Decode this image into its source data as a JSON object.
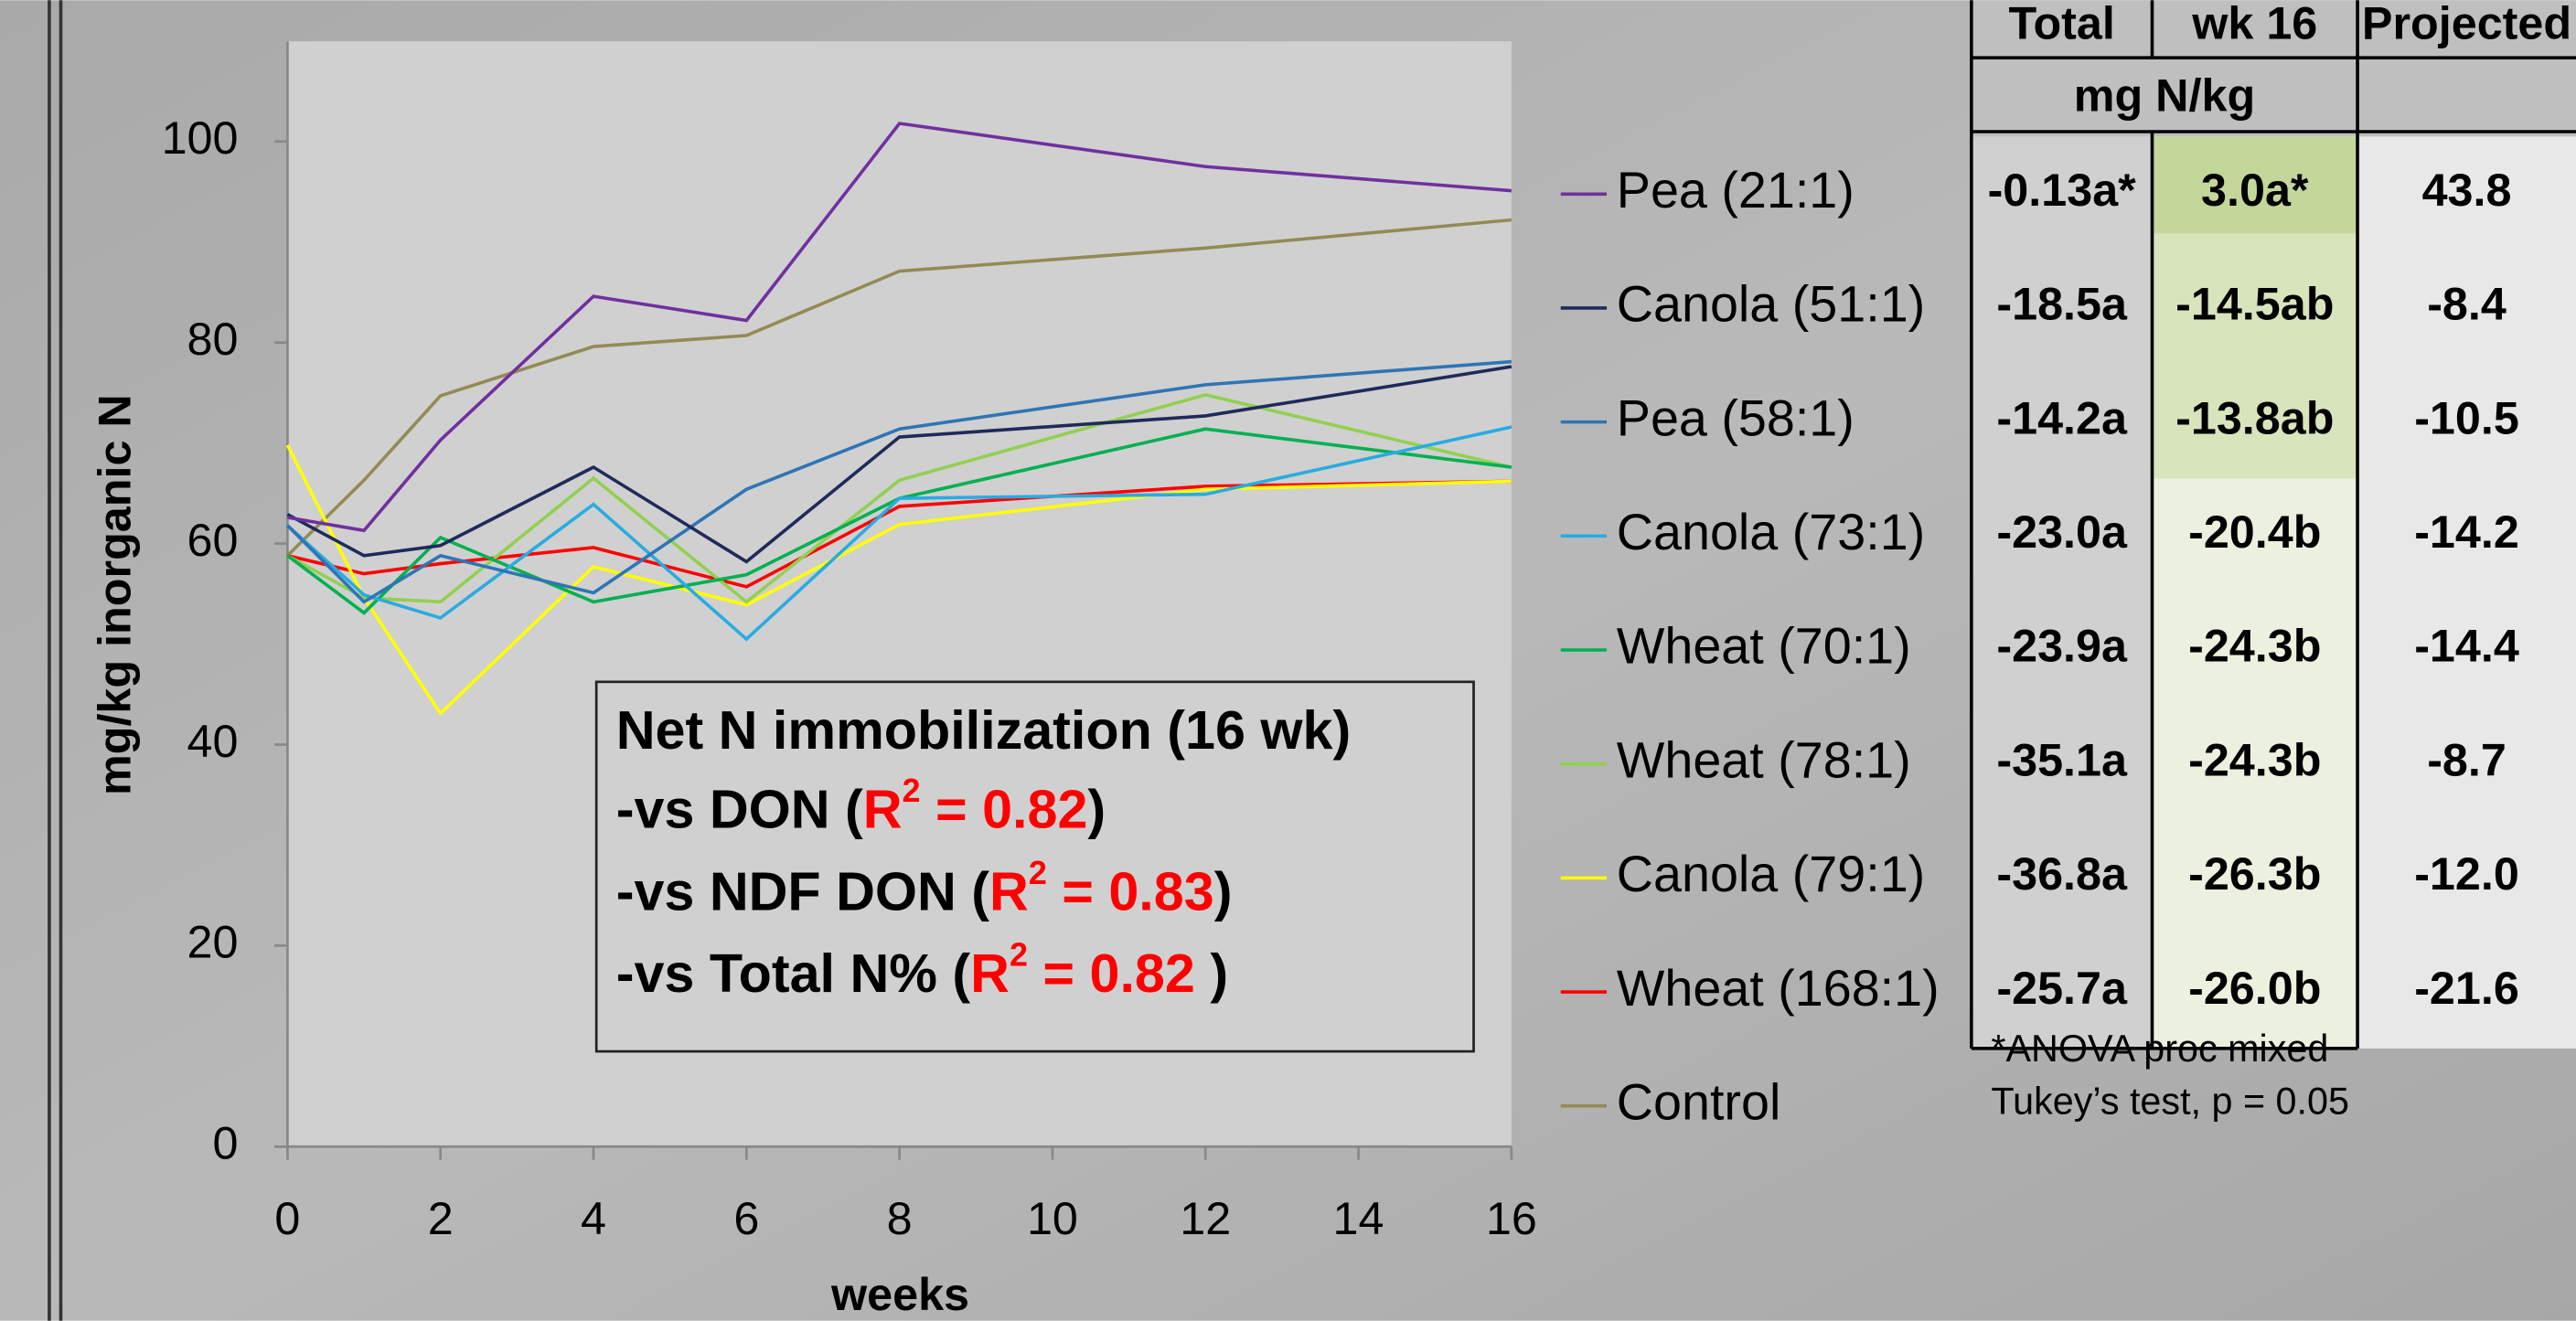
{
  "chart_data": {
    "type": "line",
    "xlabel": "weeks",
    "ylabel": "mg/kg inorganic N",
    "x": [
      0,
      1,
      2,
      4,
      6,
      8,
      12,
      16
    ],
    "xlim": [
      0,
      16
    ],
    "xticks": [
      0,
      2,
      4,
      6,
      8,
      10,
      12,
      14,
      16
    ],
    "ylim": [
      0,
      100
    ],
    "yticks": [
      0,
      20,
      40,
      60,
      80,
      100
    ],
    "series": [
      {
        "name": "Pea (21:1)",
        "color": "#7030a0",
        "values": [
          62.6,
          61.3,
          70.3,
          84.6,
          82.2,
          101.8,
          97.5,
          95.1
        ]
      },
      {
        "name": "Canola (51:1)",
        "color": "#1f2a5c",
        "values": [
          62.9,
          58.8,
          59.8,
          67.6,
          58.2,
          70.6,
          72.7,
          77.6
        ]
      },
      {
        "name": "Pea (58:1)",
        "color": "#2e75b6",
        "values": [
          61.8,
          54.2,
          58.8,
          55.1,
          65.4,
          71.4,
          75.8,
          78.1
        ]
      },
      {
        "name": "Canola (73:1)",
        "color": "#29abe2",
        "values": [
          61.8,
          54.9,
          52.6,
          63.9,
          50.5,
          64.5,
          64.9,
          71.6
        ]
      },
      {
        "name": "Wheat (70:1)",
        "color": "#00b050",
        "values": [
          58.8,
          53.1,
          60.6,
          54.2,
          56.9,
          64.5,
          71.4,
          67.6
        ]
      },
      {
        "name": "Wheat (78:1)",
        "color": "#92d050",
        "values": [
          58.8,
          54.6,
          54.2,
          66.5,
          54.2,
          66.3,
          74.8,
          67.6
        ]
      },
      {
        "name": "Canola (79:1)",
        "color": "#ffff00",
        "values": [
          69.8,
          54.6,
          43.1,
          57.7,
          53.9,
          61.9,
          65.4,
          66.2
        ]
      },
      {
        "name": "Wheat (168:1)",
        "color": "#ff0000",
        "values": [
          58.8,
          57.0,
          58.0,
          59.6,
          55.7,
          63.7,
          65.7,
          66.2
        ]
      },
      {
        "name": "Control",
        "color": "#948a54",
        "values": [
          58.8,
          66.3,
          74.7,
          79.6,
          80.7,
          87.1,
          89.4,
          92.2
        ]
      }
    ],
    "annotation": {
      "title": "Net N immobilization (16 wk)",
      "lines": [
        {
          "prefix": "-vs DON (",
          "stat": "R",
          "sup": "2",
          "value": " = 0.82",
          "suffix": ")"
        },
        {
          "prefix": "-vs NDF DON (",
          "stat": "R",
          "sup": "2",
          "value": " = 0.83",
          "suffix": ")"
        },
        {
          "prefix": "-vs Total N% (",
          "stat": "R",
          "sup": "2",
          "value": " = 0.82 ",
          "suffix": ")"
        }
      ]
    }
  },
  "table": {
    "headers": [
      "Total",
      "wk 16",
      "Projected"
    ],
    "unit": "mg N/kg",
    "rows": [
      [
        "-0.13a*",
        "3.0a*",
        "43.8"
      ],
      [
        "-18.5a",
        "-14.5ab",
        "-8.4"
      ],
      [
        "-14.2a",
        "-13.8ab",
        "-10.5"
      ],
      [
        "-23.0a",
        "-20.4b",
        "-14.2"
      ],
      [
        "-23.9a",
        "-24.3b",
        "-14.4"
      ],
      [
        "-35.1a",
        "-24.3b",
        "-8.7"
      ],
      [
        "-36.8a",
        "-26.3b",
        "-12.0"
      ],
      [
        "-25.7a",
        "-26.0b",
        "-21.6"
      ]
    ],
    "footnotes": [
      "*ANOVA proc mixed",
      "Tukey’s test, p = 0.05"
    ]
  }
}
